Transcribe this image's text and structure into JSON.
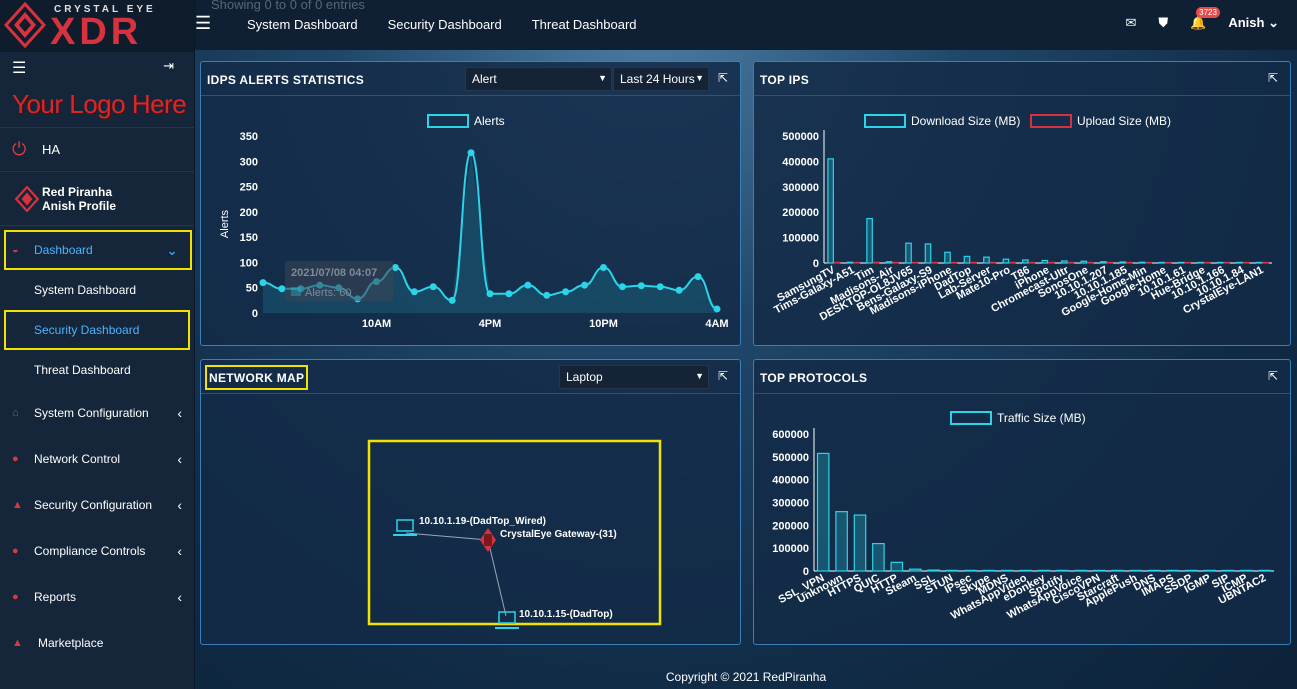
{
  "brand": {
    "sub": "CRYSTAL EYE",
    "name": "XDR"
  },
  "sidebar": {
    "logo_text": "Your Logo Here",
    "ha": "HA",
    "profile_name": "Red Piranha",
    "profile_sub": "Anish Profile",
    "dashboard_label": "Dashboard",
    "sub_items": [
      "System Dashboard",
      "Security Dashboard",
      "Threat Dashboard"
    ],
    "items": [
      "System Configuration",
      "Network Control",
      "Security Configuration",
      "Compliance Controls",
      "Reports",
      "Marketplace"
    ]
  },
  "topbar": {
    "ghost_text": "Showing 0 to 0 of 0 entries",
    "nav": [
      "System Dashboard",
      "Security Dashboard",
      "Threat Dashboard"
    ],
    "badge": "3723",
    "user": "Anish"
  },
  "idps": {
    "title": "IDPS ALERTS STATISTICS",
    "select1": "Alert",
    "select2": "Last 24 Hours",
    "legend": "Alerts",
    "ylabel": "Alerts",
    "tooltip_date": "2021/07/08 04:07",
    "tooltip_value": "Alerts: 60"
  },
  "topips": {
    "title": "TOP IPS",
    "legend1": "Download Size (MB)",
    "legend2": "Upload Size (MB)"
  },
  "netmap": {
    "title": "NETWORK MAP",
    "select": "Laptop",
    "node1": "10.10.1.19-(DadTop_Wired)",
    "gateway": "CrystalEye Gateway-(31)",
    "node2": "10.10.1.15-(DadTop)"
  },
  "protocols": {
    "title": "TOP PROTOCOLS",
    "legend": "Traffic Size (MB)"
  },
  "footer": "Copyright © 2021 RedPiranha",
  "colors": {
    "accent": "#2bd4e8",
    "upload": "#d8323f",
    "highlight": "#f2e200"
  },
  "chart_data": [
    {
      "type": "line",
      "title": "IDPS ALERTS STATISTICS",
      "series": [
        {
          "name": "Alerts",
          "values": [
            60,
            48,
            48,
            55,
            50,
            28,
            62,
            90,
            42,
            52,
            25,
            317,
            38,
            38,
            55,
            35,
            42,
            55,
            90,
            52,
            54,
            52,
            45,
            72,
            8
          ]
        }
      ],
      "xticks": [
        "10AM",
        "4PM",
        "10PM",
        "4AM"
      ],
      "xtick_index": [
        6,
        12,
        18,
        24
      ],
      "ylabel": "Alerts",
      "ylim": [
        0,
        350
      ],
      "yticks": [
        0,
        50,
        100,
        150,
        200,
        250,
        300,
        350
      ]
    },
    {
      "type": "bar",
      "title": "TOP IPS",
      "categories": [
        "SamsungTV",
        "Tims-Galaxy-A51",
        "Tim",
        "Madisons-Air",
        "DESKTOP-OL8JV65",
        "Bens-Galaxy-S9",
        "Madisons-iPhone",
        "DadTop",
        "Lab-Server",
        "Mate10-Pro",
        "T86",
        "iPhone",
        "Chromecast-Ultr",
        "SonosOne",
        "10.10.1.207",
        "10.10.1.185",
        "Google-Home-Min",
        "Google-Home",
        "10.10.1.61",
        "Hue-Bridge",
        "10.10.1.166",
        "10.10.1.84",
        "CrystalEye-LAN1"
      ],
      "series": [
        {
          "name": "Download Size (MB)",
          "values": [
            410000,
            3000,
            175000,
            5000,
            78000,
            75000,
            42000,
            26000,
            23000,
            15000,
            12000,
            10000,
            8000,
            7000,
            5000,
            4000,
            3000,
            2000,
            1500,
            1000,
            800,
            600,
            500
          ]
        },
        {
          "name": "Upload Size (MB)",
          "values": [
            2000,
            100,
            3000,
            100,
            1000,
            1000,
            500,
            400,
            300,
            200,
            100,
            100,
            100,
            100,
            50,
            50,
            50,
            50,
            20,
            20,
            10,
            10,
            10
          ]
        }
      ],
      "ylim": [
        0,
        500000
      ],
      "yticks": [
        0,
        100000,
        200000,
        300000,
        400000,
        500000
      ]
    },
    {
      "type": "bar",
      "title": "TOP PROTOCOLS",
      "categories": [
        "SSL_VPN",
        "Unknown",
        "HTTPS",
        "QUIC",
        "HTTP",
        "Steam",
        "SSL",
        "STUN",
        "IPsec",
        "Skype",
        "MDNS",
        "WhatsAppVideo",
        "eDonkey",
        "Spotify",
        "WhatsAppVoice",
        "CiscoVPN",
        "Starcraft",
        "ApplePush",
        "DNS",
        "IMAPS",
        "SSDP",
        "IGMP",
        "SIP",
        "ICMP",
        "UBNTAC2"
      ],
      "series": [
        {
          "name": "Traffic Size (MB)",
          "values": [
            515000,
            260000,
            245000,
            120000,
            38000,
            8000,
            4000,
            2500,
            2000,
            1500,
            1000,
            800,
            600,
            500,
            400,
            300,
            250,
            200,
            150,
            120,
            100,
            80,
            60,
            40,
            20
          ]
        }
      ],
      "ylim": [
        0,
        600000
      ],
      "yticks": [
        0,
        100000,
        200000,
        300000,
        400000,
        500000,
        600000
      ]
    }
  ]
}
